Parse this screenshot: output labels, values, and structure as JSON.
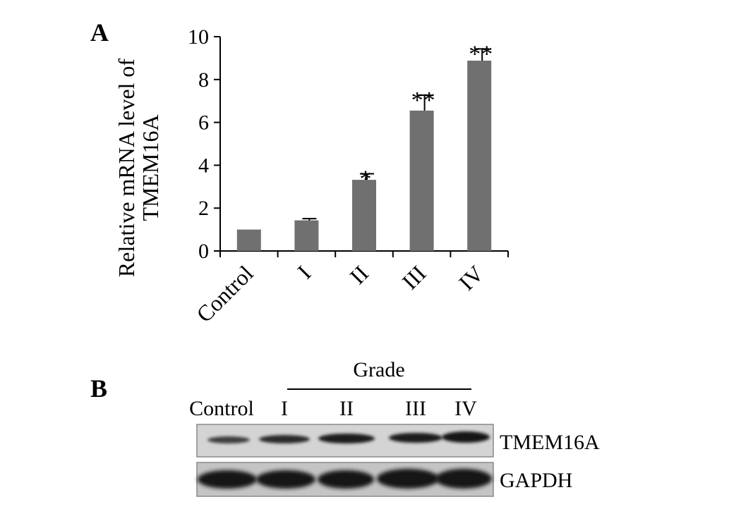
{
  "panels": {
    "a_label": "A",
    "b_label": "B"
  },
  "chart_data": {
    "type": "bar",
    "categories": [
      "Control",
      "I",
      "II",
      "III",
      "IV"
    ],
    "values": [
      1.0,
      1.43,
      3.32,
      6.55,
      8.88
    ],
    "errors": [
      0.0,
      0.08,
      0.28,
      0.72,
      0.55
    ],
    "significance": [
      "",
      "",
      "*",
      "**",
      "**"
    ],
    "ylabel_line1": "Relative mRNA level of",
    "ylabel_line2": "TMEM16A",
    "ylim": [
      0,
      10
    ],
    "yticks": [
      "0",
      "2",
      "4",
      "6",
      "8",
      "10"
    ],
    "bar_color": "#707070"
  },
  "blot": {
    "grade_label": "Grade",
    "lanes": [
      "Control",
      "I",
      "II",
      "III",
      "IV"
    ],
    "rows": [
      "TMEM16A",
      "GAPDH"
    ]
  }
}
